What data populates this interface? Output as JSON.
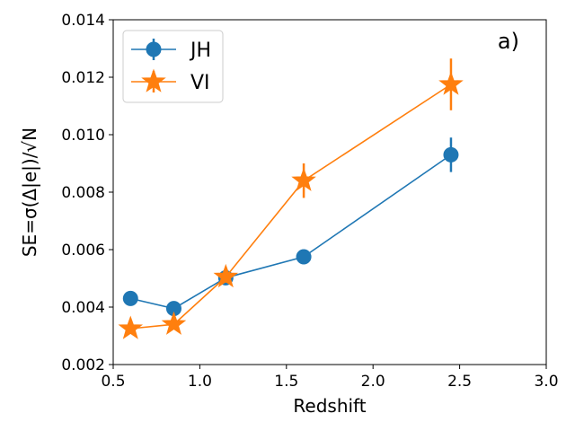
{
  "chart_data": {
    "type": "line",
    "title": "",
    "panel_label": "a)",
    "xlabel": "Redshift",
    "ylabel": "SE=σ(Δ|e|)/√N",
    "xlim": [
      0.5,
      3.0
    ],
    "ylim": [
      0.002,
      0.014
    ],
    "xticks": [
      0.5,
      1.0,
      1.5,
      2.0,
      2.5,
      3.0
    ],
    "xtick_labels": [
      "0.5",
      "1.0",
      "1.5",
      "2.0",
      "2.5",
      "3.0"
    ],
    "yticks": [
      0.002,
      0.004,
      0.006,
      0.008,
      0.01,
      0.012,
      0.014
    ],
    "ytick_labels": [
      "0.002",
      "0.004",
      "0.006",
      "0.008",
      "0.010",
      "0.012",
      "0.014"
    ],
    "grid": false,
    "legend_position": "top-left",
    "series": [
      {
        "name": "JH",
        "color": "#1f77b4",
        "marker": "circle",
        "x": [
          0.6,
          0.85,
          1.15,
          1.6,
          2.45
        ],
        "y": [
          0.0043,
          0.00395,
          0.00502,
          0.00575,
          0.0093
        ],
        "yerr": [
          0.0002,
          0.00015,
          0.00025,
          0.0002,
          0.0006
        ]
      },
      {
        "name": "VI",
        "color": "#ff7f0e",
        "marker": "star",
        "x": [
          0.6,
          0.85,
          1.15,
          1.6,
          2.45
        ],
        "y": [
          0.00325,
          0.0034,
          0.00505,
          0.0084,
          0.01175
        ],
        "yerr": [
          0.0001,
          0.0001,
          0.0002,
          0.0006,
          0.0009
        ]
      }
    ]
  }
}
